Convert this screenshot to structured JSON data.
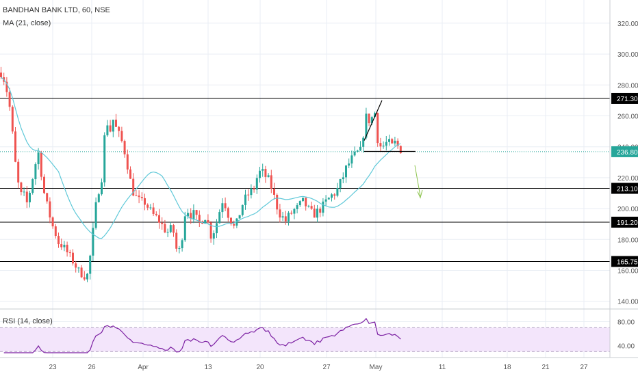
{
  "header": {
    "symbol_line": "BANDHAN BANK LTD, 60, NSE",
    "ma_label": "MA (21, close)",
    "rsi_label": "RSI (14, close)"
  },
  "colors": {
    "up": "#26a69a",
    "down": "#ef5350",
    "ma": "#5ec8d8",
    "rsi": "#7b1fa2",
    "rsi_band": "#f3e5fb",
    "grid": "#e9eef4",
    "hline": "#000000",
    "current": "#26a69a",
    "arrow": "#8bc34a"
  },
  "chart_data": [
    {
      "type": "candlestick",
      "title": "BANDHAN BANK LTD, 60, NSE",
      "y_ticks": [
        140,
        160,
        180,
        200,
        220,
        240,
        260,
        280,
        300,
        320
      ],
      "x_ticks": [
        "23",
        "26",
        "Apr",
        "13",
        "20",
        "27",
        "May",
        "11",
        "18",
        "21",
        "27"
      ],
      "ylim": [
        135,
        335
      ],
      "grid": true,
      "horizontal_levels": [
        271.3,
        213.1,
        191.2,
        165.75
      ],
      "level_labels": [
        "271.30",
        "213.10",
        "191.20",
        "165.75"
      ],
      "current_price": 236.8,
      "current_label": "236.80",
      "ma": {
        "name": "MA (21, close)"
      }
    },
    {
      "type": "line",
      "title": "RSI (14, close)",
      "y_ticks": [
        40,
        80
      ],
      "y_tick_labels": [
        "40.00",
        "80.00"
      ],
      "band": [
        30,
        70
      ],
      "ylim": [
        20,
        100
      ]
    }
  ]
}
